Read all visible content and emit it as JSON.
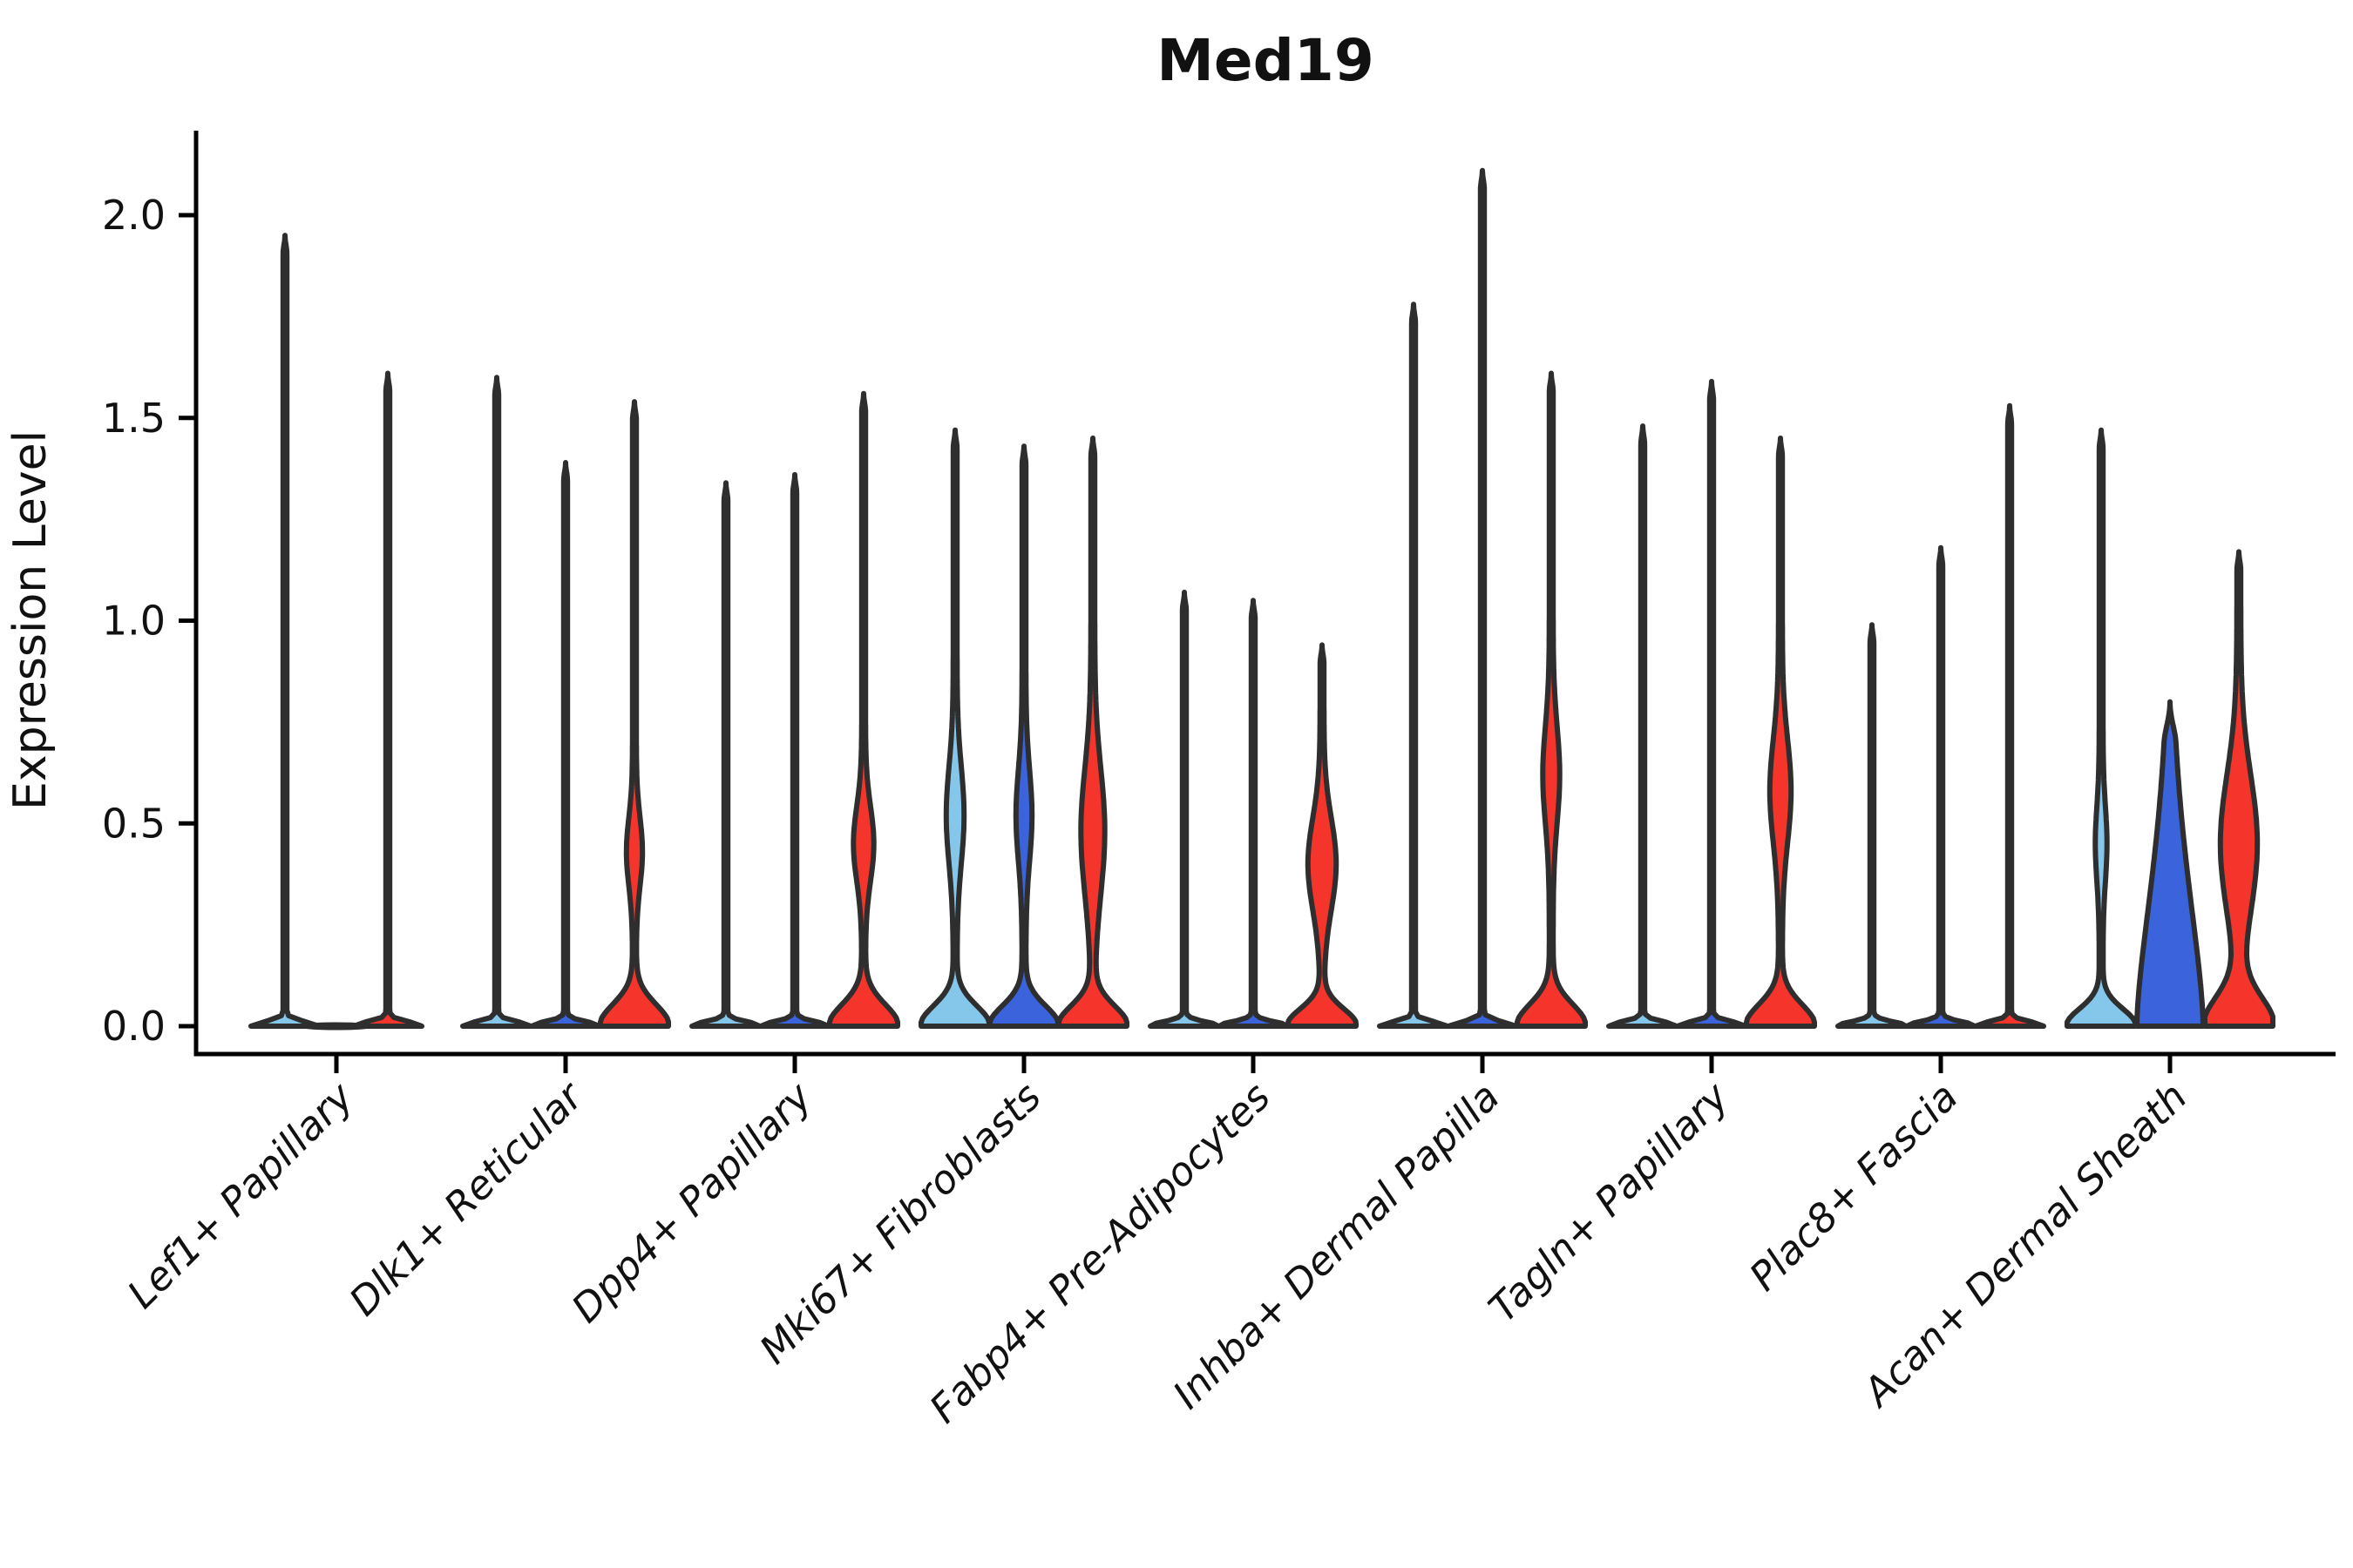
{
  "title": "Med19",
  "ylabel": "Expression Level",
  "colors": {
    "background": "#ffffff",
    "axis": "#000000",
    "text": "#111111",
    "violin_outline": "#2E2E2E",
    "lightblue": "#85C7EA",
    "blue": "#3A63DC",
    "red": "#F5342C"
  },
  "chart_data": {
    "type": "violin",
    "title": "Med19",
    "xlabel": "",
    "ylabel": "Expression Level",
    "ylim": [
      -0.07,
      2.2
    ],
    "yticks": [
      {
        "label": "0.0",
        "value": 0.0
      },
      {
        "label": "0.5",
        "value": 0.5
      },
      {
        "label": "1.0",
        "value": 1.0
      },
      {
        "label": "1.5",
        "value": 1.5
      },
      {
        "label": "2.0",
        "value": 2.0
      }
    ],
    "grid": false,
    "legend_position": "none",
    "series_colors": [
      "#85C7EA",
      "#3A63DC",
      "#F5342C"
    ],
    "categories": [
      "Lef1+ Papillary",
      "Dlk1+ Reticular",
      "Dpp4+ Papillary",
      "Mki67+ Fibroblasts",
      "Fabp4+ Pre-Adipocytes",
      "Inhba+ Dermal Papilla",
      "Tagln+ Papillary",
      "Plac8+ Fascia",
      "Acan+ Dermal Sheath"
    ],
    "groups": [
      {
        "category": "Lef1+ Papillary",
        "violins": [
          {
            "offset": -59,
            "color": "#85C7EA",
            "max": 1.95,
            "shape": "thin"
          },
          {
            "offset": 0,
            "color": "#3A63DC",
            "max": 0.0,
            "shape": "flat"
          },
          {
            "offset": 59,
            "color": "#F5342C",
            "max": 1.61,
            "shape": "thin"
          }
        ]
      },
      {
        "category": "Dlk1+ Reticular",
        "violins": [
          {
            "offset": -79,
            "color": "#85C7EA",
            "max": 1.6,
            "shape": "thin"
          },
          {
            "offset": 0,
            "color": "#3A63DC",
            "max": 1.39,
            "shape": "thin"
          },
          {
            "offset": 79,
            "color": "#F5342C",
            "max": 1.54,
            "shape": "body",
            "base": {
              "amp": 38,
              "sigma": 0.075
            },
            "bulge": {
              "mu": 0.43,
              "sigma": 0.12,
              "amp": 7
            }
          }
        ]
      },
      {
        "category": "Dpp4+ Papillary",
        "violins": [
          {
            "offset": -79,
            "color": "#85C7EA",
            "max": 1.34,
            "shape": "thin"
          },
          {
            "offset": 0,
            "color": "#3A63DC",
            "max": 1.36,
            "shape": "thin"
          },
          {
            "offset": 79,
            "color": "#F5342C",
            "max": 1.56,
            "shape": "body",
            "base": {
              "amp": 38,
              "sigma": 0.075
            },
            "bulge": {
              "mu": 0.45,
              "sigma": 0.13,
              "amp": 9.5
            }
          }
        ]
      },
      {
        "category": "Mki67+ Fibroblasts",
        "violins": [
          {
            "offset": -79,
            "color": "#85C7EA",
            "max": 1.47,
            "shape": "body",
            "base": {
              "amp": 38,
              "sigma": 0.07
            },
            "bulge": {
              "mu": 0.52,
              "sigma": 0.17,
              "amp": 8
            }
          },
          {
            "offset": 0,
            "color": "#3A63DC",
            "max": 1.43,
            "shape": "body",
            "base": {
              "amp": 38,
              "sigma": 0.07
            },
            "bulge": {
              "mu": 0.52,
              "sigma": 0.16,
              "amp": 7
            }
          },
          {
            "offset": 79,
            "color": "#F5342C",
            "max": 1.45,
            "shape": "body",
            "base": {
              "amp": 38,
              "sigma": 0.07
            },
            "bulge": {
              "mu": 0.48,
              "sigma": 0.22,
              "amp": 11.5
            }
          }
        ]
      },
      {
        "category": "Fabp4+ Pre-Adipocytes",
        "violins": [
          {
            "offset": -79,
            "color": "#85C7EA",
            "max": 1.07,
            "shape": "thin"
          },
          {
            "offset": 0,
            "color": "#3A63DC",
            "max": 1.05,
            "shape": "thin"
          },
          {
            "offset": 79,
            "color": "#F5342C",
            "max": 0.94,
            "shape": "body",
            "base": {
              "amp": 38,
              "sigma": 0.06
            },
            "bulge": {
              "mu": 0.4,
              "sigma": 0.16,
              "amp": 14
            }
          }
        ]
      },
      {
        "category": "Inhba+ Dermal Papilla",
        "violins": [
          {
            "offset": -79,
            "color": "#85C7EA",
            "max": 1.78,
            "shape": "thin"
          },
          {
            "offset": 0,
            "color": "#3A63DC",
            "max": 2.11,
            "shape": "thin"
          },
          {
            "offset": 79,
            "color": "#F5342C",
            "max": 1.61,
            "shape": "body",
            "base": {
              "amp": 38,
              "sigma": 0.075
            },
            "bulge": {
              "mu": 0.62,
              "sigma": 0.17,
              "amp": 7.5
            }
          }
        ]
      },
      {
        "category": "Tagln+ Papillary",
        "violins": [
          {
            "offset": -79,
            "color": "#85C7EA",
            "max": 1.48,
            "shape": "thin"
          },
          {
            "offset": 0,
            "color": "#3A63DC",
            "max": 1.59,
            "shape": "thin"
          },
          {
            "offset": 79,
            "color": "#F5342C",
            "max": 1.45,
            "shape": "body",
            "base": {
              "amp": 38,
              "sigma": 0.075
            },
            "bulge": {
              "mu": 0.58,
              "sigma": 0.18,
              "amp": 10
            }
          }
        ]
      },
      {
        "category": "Plac8+ Fascia",
        "violins": [
          {
            "offset": -79,
            "color": "#85C7EA",
            "max": 0.99,
            "shape": "thin"
          },
          {
            "offset": 0,
            "color": "#3A63DC",
            "max": 1.18,
            "shape": "thin"
          },
          {
            "offset": 79,
            "color": "#F5342C",
            "max": 1.53,
            "shape": "thin"
          }
        ]
      },
      {
        "category": "Acan+ Dermal Sheath",
        "violins": [
          {
            "offset": -79,
            "color": "#85C7EA",
            "max": 1.47,
            "shape": "body",
            "base": {
              "amp": 38,
              "sigma": 0.06
            },
            "bulge": {
              "mu": 0.45,
              "sigma": 0.13,
              "amp": 4.5
            }
          },
          {
            "offset": 0,
            "color": "#3A63DC",
            "max": 0.8,
            "shape": "cone",
            "base": {
              "amp": 38,
              "sigma": 0.5,
              "power": 1.6
            }
          },
          {
            "offset": 79,
            "color": "#F5342C",
            "max": 1.17,
            "shape": "body",
            "base": {
              "amp": 38,
              "sigma": 0.1
            },
            "bulge": {
              "mu": 0.45,
              "sigma": 0.24,
              "amp": 19
            }
          }
        ]
      }
    ]
  }
}
